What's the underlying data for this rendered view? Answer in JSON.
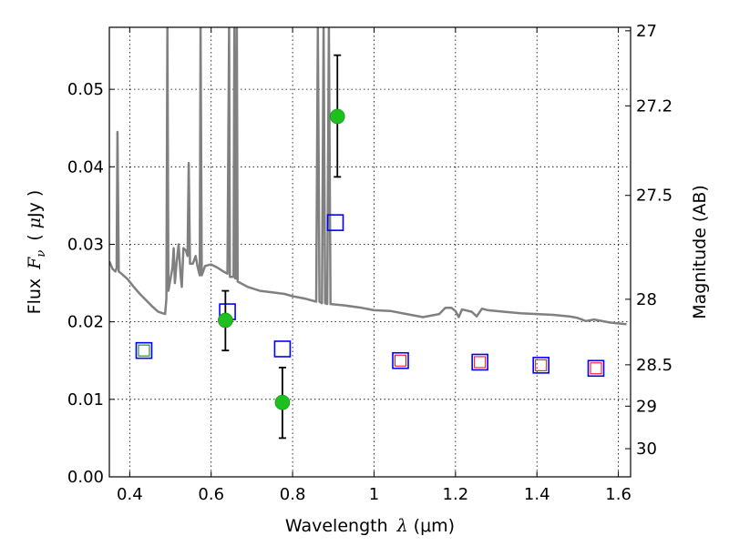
{
  "chart_data": {
    "type": "scatter",
    "title": "",
    "xlabel_text": "Wavelength",
    "xlabel_symbol": "λ",
    "xlabel_unit": "(μm)",
    "ylabel_text": "Flux",
    "ylabel_symbol_main": "F",
    "ylabel_symbol_sub": "ν",
    "ylabel_unit_open": "(",
    "ylabel_unit_mu": "μ",
    "ylabel_unit_rest": "Jy",
    "ylabel_unit_close": ")",
    "y2label": "Magnitude (AB)",
    "xlim": [
      0.35,
      1.63
    ],
    "ylim": [
      0.0,
      0.058
    ],
    "grid": true,
    "x_ticks": [
      0.4,
      0.6,
      0.8,
      1.0,
      1.2,
      1.4,
      1.6
    ],
    "x_tick_labels": [
      "0.4",
      "0.6",
      "0.8",
      "1",
      "1.2",
      "1.4",
      "1.6"
    ],
    "y_ticks": [
      0.0,
      0.01,
      0.02,
      0.03,
      0.04,
      0.05
    ],
    "y_tick_labels": [
      "0.00",
      "0.01",
      "0.02",
      "0.03",
      "0.04",
      "0.05"
    ],
    "mag_ticks": [
      27,
      27.2,
      27.5,
      28,
      28.5,
      29,
      30
    ],
    "mag_tick_labels": [
      "27",
      "27.2",
      "27.5",
      "28",
      "28.5",
      "29",
      "30"
    ],
    "colors": {
      "spectrum": "#808080",
      "observed": "#1fbf1f",
      "model_blue": "#0000ff",
      "model_red": "#ff0000",
      "model_green": "#008000",
      "errorbar": "#000000"
    },
    "series": [
      {
        "kind": "observed",
        "points": [
          {
            "x": 0.635,
            "y": 0.0202,
            "yerr_low": 0.0163,
            "yerr_high": 0.024
          },
          {
            "x": 0.775,
            "y": 0.0096,
            "yerr_low": 0.005,
            "yerr_high": 0.0141
          },
          {
            "x": 0.91,
            "y": 0.0465,
            "yerr_low": 0.0387,
            "yerr_high": 0.0544
          }
        ]
      },
      {
        "kind": "model_blue",
        "points": [
          {
            "x": 0.435,
            "y": 0.0163
          },
          {
            "x": 0.64,
            "y": 0.0213
          },
          {
            "x": 0.775,
            "y": 0.0165
          },
          {
            "x": 0.905,
            "y": 0.0328
          },
          {
            "x": 1.065,
            "y": 0.015
          },
          {
            "x": 1.26,
            "y": 0.0148
          },
          {
            "x": 1.41,
            "y": 0.0144
          },
          {
            "x": 1.545,
            "y": 0.014
          }
        ]
      },
      {
        "kind": "model_inner",
        "points": [
          {
            "x": 0.435,
            "y": 0.0163,
            "color": "green"
          },
          {
            "x": 1.065,
            "y": 0.015,
            "color": "red"
          },
          {
            "x": 1.26,
            "y": 0.0148,
            "color": "red"
          },
          {
            "x": 1.41,
            "y": 0.0144,
            "color": "red"
          },
          {
            "x": 1.545,
            "y": 0.014,
            "color": "red"
          }
        ]
      }
    ],
    "spectrum": [
      [
        0.35,
        0.0278
      ],
      [
        0.358,
        0.0268
      ],
      [
        0.365,
        0.0265
      ],
      [
        0.368,
        0.027
      ],
      [
        0.37,
        0.0445
      ],
      [
        0.373,
        0.0265
      ],
      [
        0.38,
        0.0262
      ],
      [
        0.395,
        0.0255
      ],
      [
        0.41,
        0.0245
      ],
      [
        0.425,
        0.0236
      ],
      [
        0.44,
        0.0228
      ],
      [
        0.455,
        0.022
      ],
      [
        0.47,
        0.0213
      ],
      [
        0.487,
        0.021
      ],
      [
        0.49,
        0.023
      ],
      [
        0.4925,
        0.0582
      ],
      [
        0.495,
        0.024
      ],
      [
        0.5,
        0.0255
      ],
      [
        0.505,
        0.027
      ],
      [
        0.508,
        0.0295
      ],
      [
        0.511,
        0.025
      ],
      [
        0.515,
        0.0275
      ],
      [
        0.52,
        0.03
      ],
      [
        0.525,
        0.026
      ],
      [
        0.528,
        0.0245
      ],
      [
        0.532,
        0.0295
      ],
      [
        0.538,
        0.0292
      ],
      [
        0.542,
        0.0285
      ],
      [
        0.545,
        0.0405
      ],
      [
        0.548,
        0.0275
      ],
      [
        0.555,
        0.0275
      ],
      [
        0.562,
        0.0285
      ],
      [
        0.567,
        0.027
      ],
      [
        0.572,
        0.026
      ],
      [
        0.574,
        0.0582
      ],
      [
        0.577,
        0.026
      ],
      [
        0.585,
        0.0272
      ],
      [
        0.6,
        0.0274
      ],
      [
        0.615,
        0.027
      ],
      [
        0.63,
        0.0265
      ],
      [
        0.64,
        0.0262
      ],
      [
        0.644,
        0.0582
      ],
      [
        0.646,
        0.0258
      ],
      [
        0.655,
        0.0258
      ],
      [
        0.657,
        0.0582
      ],
      [
        0.659,
        0.0256
      ],
      [
        0.661,
        0.0256
      ],
      [
        0.663,
        0.0582
      ],
      [
        0.665,
        0.0252
      ],
      [
        0.69,
        0.0245
      ],
      [
        0.72,
        0.024
      ],
      [
        0.75,
        0.0238
      ],
      [
        0.78,
        0.0236
      ],
      [
        0.8,
        0.0233
      ],
      [
        0.83,
        0.023
      ],
      [
        0.858,
        0.0226
      ],
      [
        0.862,
        0.0582
      ],
      [
        0.866,
        0.0226
      ],
      [
        0.872,
        0.0224
      ],
      [
        0.876,
        0.0582
      ],
      [
        0.88,
        0.0224
      ],
      [
        0.885,
        0.0223
      ],
      [
        0.889,
        0.0582
      ],
      [
        0.893,
        0.0223
      ],
      [
        0.93,
        0.0221
      ],
      [
        0.97,
        0.0218
      ],
      [
        1.0,
        0.0215
      ],
      [
        1.04,
        0.0214
      ],
      [
        1.08,
        0.021
      ],
      [
        1.12,
        0.0206
      ],
      [
        1.16,
        0.021
      ],
      [
        1.175,
        0.0218
      ],
      [
        1.19,
        0.0218
      ],
      [
        1.2,
        0.0214
      ],
      [
        1.208,
        0.0206
      ],
      [
        1.216,
        0.0216
      ],
      [
        1.24,
        0.0213
      ],
      [
        1.252,
        0.0207
      ],
      [
        1.265,
        0.0217
      ],
      [
        1.28,
        0.0215
      ],
      [
        1.32,
        0.0213
      ],
      [
        1.36,
        0.0211
      ],
      [
        1.4,
        0.021
      ],
      [
        1.44,
        0.0209
      ],
      [
        1.48,
        0.0207
      ],
      [
        1.5,
        0.0205
      ],
      [
        1.52,
        0.0201
      ],
      [
        1.54,
        0.0203
      ],
      [
        1.58,
        0.0199
      ],
      [
        1.62,
        0.0197
      ]
    ]
  }
}
